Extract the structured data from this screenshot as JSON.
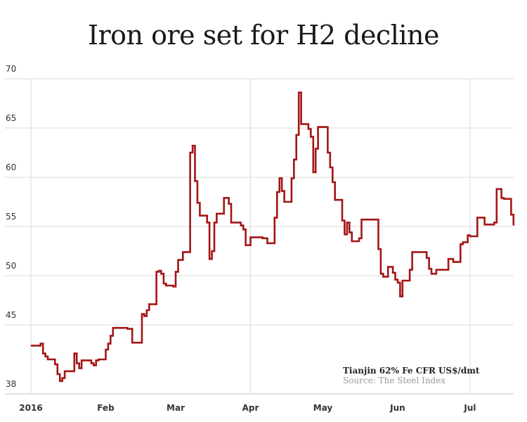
{
  "chart_data": {
    "type": "line",
    "step": true,
    "title": "Iron ore set for H2 decline",
    "xlabel": "",
    "ylabel": "",
    "ylim": [
      38,
      70
    ],
    "xlim": [
      "2016-01-01",
      "2016-07-19"
    ],
    "yticks": [
      38,
      45,
      50,
      55,
      60,
      65,
      70
    ],
    "xticks": [
      {
        "date": "2016-01-01",
        "label": "2016",
        "grid": true
      },
      {
        "date": "2016-02-01",
        "label": "Feb",
        "grid": false
      },
      {
        "date": "2016-03-01",
        "label": "Mar",
        "grid": false
      },
      {
        "date": "2016-04-01",
        "label": "Apr",
        "grid": true
      },
      {
        "date": "2016-05-01",
        "label": "May",
        "grid": false
      },
      {
        "date": "2016-06-01",
        "label": "Jun",
        "grid": false
      },
      {
        "date": "2016-07-01",
        "label": "Jul",
        "grid": true
      }
    ],
    "grid": true,
    "line_color": "#a31515",
    "annotation": {
      "label": "Tianjin 62% Fe CFR US$/dmt",
      "source": "Source: The Steel Index"
    },
    "series": [
      {
        "points": [
          [
            "2016-01-01",
            42.9
          ],
          [
            "2016-01-05",
            43.1
          ],
          [
            "2016-01-06",
            42.1
          ],
          [
            "2016-01-07",
            41.8
          ],
          [
            "2016-01-08",
            41.5
          ],
          [
            "2016-01-11",
            41.0
          ],
          [
            "2016-01-12",
            40.0
          ],
          [
            "2016-01-13",
            39.3
          ],
          [
            "2016-01-14",
            39.6
          ],
          [
            "2016-01-15",
            40.3
          ],
          [
            "2016-01-19",
            42.1
          ],
          [
            "2016-01-20",
            41.1
          ],
          [
            "2016-01-21",
            40.6
          ],
          [
            "2016-01-22",
            41.4
          ],
          [
            "2016-01-26",
            41.1
          ],
          [
            "2016-01-27",
            40.9
          ],
          [
            "2016-01-28",
            41.4
          ],
          [
            "2016-01-29",
            41.5
          ],
          [
            "2016-02-01",
            42.5
          ],
          [
            "2016-02-02",
            43.1
          ],
          [
            "2016-02-03",
            43.9
          ],
          [
            "2016-02-04",
            44.7
          ],
          [
            "2016-02-10",
            44.6
          ],
          [
            "2016-02-12",
            43.2
          ],
          [
            "2016-02-16",
            46.1
          ],
          [
            "2016-02-17",
            45.9
          ],
          [
            "2016-02-18",
            46.5
          ],
          [
            "2016-02-19",
            47.1
          ],
          [
            "2016-02-22",
            50.4
          ],
          [
            "2016-02-23",
            50.5
          ],
          [
            "2016-02-24",
            50.2
          ],
          [
            "2016-02-25",
            49.2
          ],
          [
            "2016-02-26",
            49.0
          ],
          [
            "2016-02-29",
            48.9
          ],
          [
            "2016-03-01",
            50.4
          ],
          [
            "2016-03-02",
            51.6
          ],
          [
            "2016-03-04",
            52.4
          ],
          [
            "2016-03-07",
            62.5
          ],
          [
            "2016-03-08",
            63.2
          ],
          [
            "2016-03-09",
            59.6
          ],
          [
            "2016-03-10",
            57.4
          ],
          [
            "2016-03-11",
            56.1
          ],
          [
            "2016-03-14",
            55.4
          ],
          [
            "2016-03-15",
            51.7
          ],
          [
            "2016-03-16",
            52.5
          ],
          [
            "2016-03-17",
            55.4
          ],
          [
            "2016-03-18",
            56.3
          ],
          [
            "2016-03-21",
            57.9
          ],
          [
            "2016-03-23",
            57.3
          ],
          [
            "2016-03-24",
            55.4
          ],
          [
            "2016-03-28",
            55.1
          ],
          [
            "2016-03-29",
            54.7
          ],
          [
            "2016-03-30",
            53.1
          ],
          [
            "2016-04-01",
            53.9
          ],
          [
            "2016-04-06",
            53.8
          ],
          [
            "2016-04-08",
            53.3
          ],
          [
            "2016-04-11",
            55.9
          ],
          [
            "2016-04-12",
            58.5
          ],
          [
            "2016-04-13",
            59.9
          ],
          [
            "2016-04-14",
            58.6
          ],
          [
            "2016-04-15",
            57.5
          ],
          [
            "2016-04-18",
            59.9
          ],
          [
            "2016-04-19",
            61.8
          ],
          [
            "2016-04-20",
            64.3
          ],
          [
            "2016-04-21",
            68.6
          ],
          [
            "2016-04-22",
            65.4
          ],
          [
            "2016-04-25",
            64.9
          ],
          [
            "2016-04-26",
            64.1
          ],
          [
            "2016-04-27",
            60.5
          ],
          [
            "2016-04-28",
            62.9
          ],
          [
            "2016-04-29",
            65.1
          ],
          [
            "2016-05-03",
            62.5
          ],
          [
            "2016-05-04",
            61.0
          ],
          [
            "2016-05-05",
            59.5
          ],
          [
            "2016-05-06",
            57.7
          ],
          [
            "2016-05-09",
            55.6
          ],
          [
            "2016-05-10",
            54.2
          ],
          [
            "2016-05-11",
            55.4
          ],
          [
            "2016-05-12",
            54.4
          ],
          [
            "2016-05-13",
            53.5
          ],
          [
            "2016-05-16",
            53.8
          ],
          [
            "2016-05-17",
            55.7
          ],
          [
            "2016-05-24",
            52.7
          ],
          [
            "2016-05-25",
            50.2
          ],
          [
            "2016-05-26",
            49.9
          ],
          [
            "2016-05-28",
            50.9
          ],
          [
            "2016-05-30",
            50.3
          ],
          [
            "2016-05-31",
            49.6
          ],
          [
            "2016-06-01",
            49.3
          ],
          [
            "2016-06-02",
            47.9
          ],
          [
            "2016-06-03",
            49.5
          ],
          [
            "2016-06-06",
            50.6
          ],
          [
            "2016-06-07",
            52.4
          ],
          [
            "2016-06-13",
            51.8
          ],
          [
            "2016-06-14",
            50.7
          ],
          [
            "2016-06-15",
            50.2
          ],
          [
            "2016-06-17",
            50.6
          ],
          [
            "2016-06-22",
            51.7
          ],
          [
            "2016-06-24",
            51.4
          ],
          [
            "2016-06-27",
            53.2
          ],
          [
            "2016-06-28",
            53.4
          ],
          [
            "2016-06-30",
            54.1
          ],
          [
            "2016-07-01",
            54.0
          ],
          [
            "2016-07-04",
            55.9
          ],
          [
            "2016-07-07",
            55.2
          ],
          [
            "2016-07-11",
            55.4
          ],
          [
            "2016-07-12",
            58.8
          ],
          [
            "2016-07-14",
            57.9
          ],
          [
            "2016-07-15",
            57.8
          ],
          [
            "2016-07-18",
            56.2
          ],
          [
            "2016-07-19",
            55.1
          ]
        ]
      }
    ]
  }
}
